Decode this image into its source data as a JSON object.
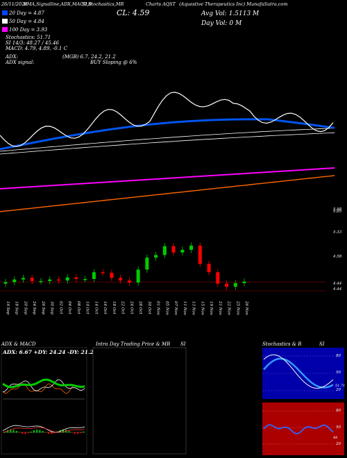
{
  "header": {
    "date": "26/11/2024",
    "indicators": "EMA,Signalline,ADX,MACD,B",
    "stoch": "SI,Stochastics,MR",
    "close_label": "CL: 4.59",
    "charts_label": "Charts AQST",
    "company": "(Aquestive Therapeutics Inc) MunafaSutra.com",
    "avg_vol": "Avg Vol: 1.5113 M",
    "day_vol": "Day Vol: 0   M"
  },
  "legend": [
    {
      "text": "20  Day = 4.87",
      "color": "#0044ff"
    },
    {
      "text": "50  Day = 4.84",
      "color": "#ffffff"
    },
    {
      "text": "100  Day = 3.93",
      "color": "#ff00ff"
    }
  ],
  "info_lines": [
    "Stochastics: 51.71",
    "SI 14/3: 48.27 / 45.46",
    "MACD: 4.79, 4.89, -0.1 C"
  ],
  "adx_line": "ADX:",
  "adx_values": "(MGB) 6.7, 24.2, 21.2",
  "adx_signal": "ADX  signal:",
  "adx_signal_value": "BUY Sloping @ 6%",
  "price_axis": [
    "5.88",
    "5.85",
    "5.33",
    "4.58",
    "4.44",
    "4.44"
  ],
  "dates": [
    "16 Sep",
    "18 Sep",
    "20 Sep",
    "24 Sep",
    "26 Sep",
    "30 Sep",
    "02 Oct",
    "04 Oct",
    "08 Oct",
    "10 Oct",
    "14 Oct",
    "16 Oct",
    "18 Oct",
    "22 Oct",
    "24 Oct",
    "28 Oct",
    "30 Oct",
    "01 Nov",
    "05 Nov",
    "07 Nov",
    "11 Nov",
    "13 Nov",
    "15 Nov",
    "19 Nov",
    "21 Nov",
    "22 Nov",
    "25 Nov",
    "26 Nov"
  ],
  "panels": {
    "adx_title": "ADX  & MACD",
    "adx_readout": "ADX: 6.67  +DY: 24.24  -DY: 21.21",
    "intra_title": "Intra  Day Trading Price  & MR",
    "intra_si": "SI",
    "stoch_title": "Stochastics & R",
    "stoch_si": "SI",
    "stoch_axis": [
      "80",
      "50",
      "20"
    ],
    "stoch_value": "51.71",
    "si_axis": [
      "80",
      "50",
      "20"
    ],
    "si_value": "48"
  },
  "colors": {
    "bull": "#00cc00",
    "bear": "#ff0000",
    "ema20": "#0055ee",
    "ema50": "#ffffff",
    "ema100": "#ff00ff",
    "ema200": "#ff6600",
    "stoch_bg": "#0000aa",
    "si_bg": "#aa0000"
  },
  "chart_data": {
    "type": "candlestick",
    "categories": [
      "16 Sep",
      "18 Sep",
      "20 Sep",
      "24 Sep",
      "26 Sep",
      "30 Sep",
      "02 Oct",
      "04 Oct",
      "08 Oct",
      "10 Oct",
      "14 Oct",
      "16 Oct",
      "18 Oct",
      "22 Oct",
      "24 Oct",
      "28 Oct",
      "30 Oct",
      "01 Nov",
      "05 Nov",
      "07 Nov",
      "11 Nov",
      "13 Nov",
      "15 Nov",
      "19 Nov",
      "21 Nov",
      "22 Nov",
      "25 Nov",
      "26 Nov"
    ],
    "close": [
      4.58,
      4.63,
      4.66,
      4.6,
      4.6,
      4.63,
      4.61,
      4.67,
      4.64,
      4.64,
      4.77,
      4.76,
      4.66,
      4.61,
      4.57,
      4.82,
      5.05,
      5.1,
      5.27,
      5.15,
      5.2,
      5.28,
      4.93,
      4.77,
      4.55,
      4.49,
      4.56,
      4.59
    ],
    "ylim": [
      4.4,
      6.0
    ],
    "price_ticks": [
      5.88,
      5.85,
      5.33,
      4.58,
      4.44,
      4.44
    ],
    "ema20": 4.87,
    "ema50": 4.84,
    "ema100": 3.93,
    "stochastics": 51.71,
    "si_14_3": [
      48.27,
      45.46
    ],
    "macd": [
      4.79,
      4.89,
      -0.1
    ],
    "adx": [
      6.67,
      24.24,
      21.21
    ]
  }
}
